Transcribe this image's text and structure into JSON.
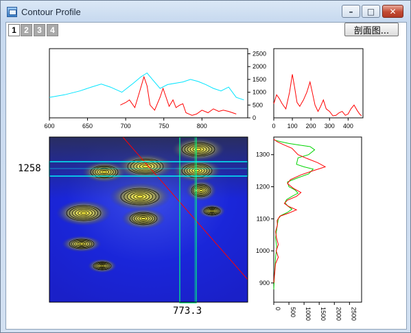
{
  "window": {
    "title": "Contour Profile",
    "min_glyph": "–",
    "max_glyph": "□",
    "close_glyph": "✕"
  },
  "tabs": [
    {
      "label": "1",
      "active": true
    },
    {
      "label": "2",
      "active": false
    },
    {
      "label": "3",
      "active": false
    },
    {
      "label": "4",
      "active": false
    }
  ],
  "section_button": {
    "label": "剖面图..."
  },
  "cursor": {
    "y_value": "1258",
    "x_value": "773.3"
  },
  "colors": {
    "horizontal_profile": "#ff0000",
    "ref_profile": "#00e5ff",
    "vertical_profile": "#ff0000",
    "vertical_ref": "#00d400",
    "contour_bg": "#1420d8",
    "band_cyan": "#00ffff",
    "band_green": "#00ff80",
    "section_line": "#ff0000"
  },
  "chart_data": [
    {
      "type": "line",
      "xlim": [
        600,
        860
      ],
      "ylim": [
        0,
        2700
      ],
      "xticks": [
        600,
        650,
        700,
        750,
        800
      ],
      "yticks": [
        0,
        500,
        1000,
        1500,
        2000,
        2500
      ],
      "series": [
        {
          "color": "#00e5ff",
          "points": [
            [
              600,
              800
            ],
            [
              620,
              900
            ],
            [
              640,
              1050
            ],
            [
              655,
              1200
            ],
            [
              668,
              1320
            ],
            [
              680,
              1200
            ],
            [
              695,
              1000
            ],
            [
              710,
              1350
            ],
            [
              720,
              1600
            ],
            [
              728,
              1750
            ],
            [
              735,
              1500
            ],
            [
              745,
              1150
            ],
            [
              755,
              1300
            ],
            [
              765,
              1350
            ],
            [
              775,
              1400
            ],
            [
              785,
              1500
            ],
            [
              795,
              1420
            ],
            [
              805,
              1300
            ],
            [
              815,
              1150
            ],
            [
              825,
              1050
            ],
            [
              835,
              1200
            ],
            [
              845,
              800
            ],
            [
              855,
              700
            ]
          ]
        },
        {
          "color": "#ff0000",
          "points": [
            [
              693,
              500
            ],
            [
              700,
              600
            ],
            [
              705,
              700
            ],
            [
              712,
              400
            ],
            [
              718,
              1000
            ],
            [
              724,
              1600
            ],
            [
              728,
              1250
            ],
            [
              732,
              500
            ],
            [
              738,
              300
            ],
            [
              745,
              800
            ],
            [
              749,
              1150
            ],
            [
              753,
              800
            ],
            [
              757,
              450
            ],
            [
              762,
              700
            ],
            [
              766,
              400
            ],
            [
              771,
              500
            ],
            [
              775,
              550
            ],
            [
              779,
              200
            ],
            [
              783,
              150
            ],
            [
              787,
              100
            ],
            [
              793,
              150
            ],
            [
              800,
              300
            ],
            [
              808,
              200
            ],
            [
              815,
              350
            ],
            [
              822,
              250
            ],
            [
              828,
              300
            ],
            [
              835,
              250
            ],
            [
              845,
              150
            ]
          ]
        }
      ]
    },
    {
      "type": "line",
      "xlim": [
        0,
        480
      ],
      "ylim": [
        0,
        2700
      ],
      "xticks": [
        0,
        100,
        200,
        300,
        400
      ],
      "series": [
        {
          "color": "#ff0000",
          "points": [
            [
              0,
              550
            ],
            [
              15,
              900
            ],
            [
              30,
              750
            ],
            [
              45,
              550
            ],
            [
              65,
              350
            ],
            [
              85,
              1000
            ],
            [
              100,
              1700
            ],
            [
              112,
              1200
            ],
            [
              125,
              600
            ],
            [
              140,
              450
            ],
            [
              160,
              700
            ],
            [
              178,
              1000
            ],
            [
              195,
              1400
            ],
            [
              210,
              900
            ],
            [
              222,
              500
            ],
            [
              238,
              250
            ],
            [
              252,
              450
            ],
            [
              267,
              700
            ],
            [
              282,
              350
            ],
            [
              300,
              250
            ],
            [
              318,
              80
            ],
            [
              335,
              100
            ],
            [
              352,
              200
            ],
            [
              368,
              250
            ],
            [
              385,
              100
            ],
            [
              400,
              150
            ],
            [
              415,
              350
            ],
            [
              432,
              500
            ],
            [
              448,
              300
            ],
            [
              462,
              150
            ],
            [
              472,
              80
            ]
          ]
        }
      ]
    },
    {
      "type": "line",
      "xlim": [
        0,
        2900
      ],
      "ylim": [
        840,
        1355
      ],
      "xticks": [
        0,
        500,
        1000,
        1500,
        2000,
        2500
      ],
      "yticks": [
        900,
        1000,
        1100,
        1200,
        1300
      ],
      "series": [
        {
          "color": "#00d400",
          "points": [
            [
              40,
              1345
            ],
            [
              250,
              1340
            ],
            [
              500,
              1335
            ],
            [
              850,
              1330
            ],
            [
              1200,
              1325
            ],
            [
              1350,
              1315
            ],
            [
              1150,
              1300
            ],
            [
              800,
              1290
            ],
            [
              750,
              1270
            ],
            [
              1000,
              1262
            ],
            [
              1300,
              1255
            ],
            [
              1150,
              1240
            ],
            [
              800,
              1228
            ],
            [
              450,
              1215
            ],
            [
              500,
              1200
            ],
            [
              700,
              1190
            ],
            [
              800,
              1180
            ],
            [
              600,
              1170
            ],
            [
              420,
              1160
            ],
            [
              370,
              1150
            ],
            [
              460,
              1140
            ],
            [
              600,
              1130
            ],
            [
              450,
              1120
            ],
            [
              230,
              1110
            ],
            [
              150,
              1100
            ],
            [
              100,
              1070
            ],
            [
              60,
              1040
            ],
            [
              100,
              1010
            ],
            [
              60,
              980
            ],
            [
              40,
              950
            ],
            [
              20,
              920
            ],
            [
              0,
              880
            ]
          ]
        },
        {
          "color": "#ff0000",
          "points": [
            [
              0,
              1348
            ],
            [
              120,
              1340
            ],
            [
              350,
              1330
            ],
            [
              600,
              1320
            ],
            [
              800,
              1300
            ],
            [
              1100,
              1288
            ],
            [
              1450,
              1275
            ],
            [
              1700,
              1262
            ],
            [
              1300,
              1250
            ],
            [
              900,
              1237
            ],
            [
              550,
              1222
            ],
            [
              450,
              1210
            ],
            [
              650,
              1195
            ],
            [
              900,
              1182
            ],
            [
              750,
              1170
            ],
            [
              450,
              1158
            ],
            [
              350,
              1148
            ],
            [
              500,
              1138
            ],
            [
              750,
              1128
            ],
            [
              500,
              1118
            ],
            [
              200,
              1108
            ],
            [
              110,
              1095
            ],
            [
              120,
              1080
            ],
            [
              60,
              1060
            ],
            [
              90,
              1040
            ],
            [
              150,
              1020
            ],
            [
              80,
              1000
            ],
            [
              150,
              980
            ],
            [
              60,
              960
            ],
            [
              30,
              930
            ],
            [
              0,
              900
            ]
          ]
        }
      ]
    }
  ]
}
